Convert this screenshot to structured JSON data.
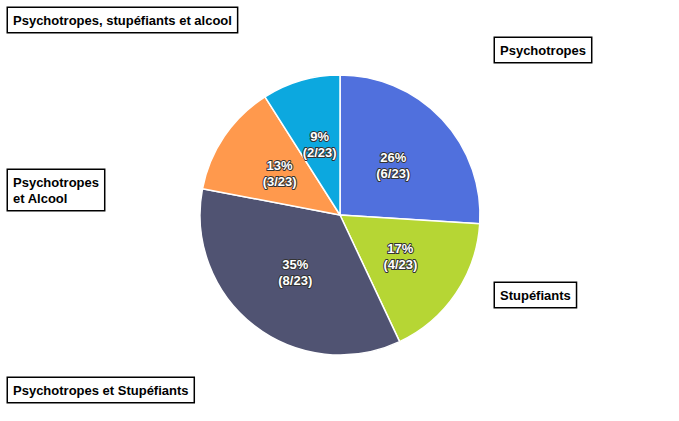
{
  "chart_data": {
    "type": "pie",
    "values": [
      26,
      17,
      35,
      13,
      9
    ],
    "value_labels": [
      "26%\n(6/23)",
      "17%\n(4/23)",
      "35%\n(8/23)",
      "13%\n(3/23)",
      "9%\n(2/23)"
    ],
    "data_labels": true,
    "legend": false,
    "annotations": [
      "Psychotropes, stupéfiants et alcool",
      "Psychotropes",
      "Stupéfiants",
      "Psychotropes et Stupéfiants",
      "Psychotropes\net Alcool"
    ]
  }
}
